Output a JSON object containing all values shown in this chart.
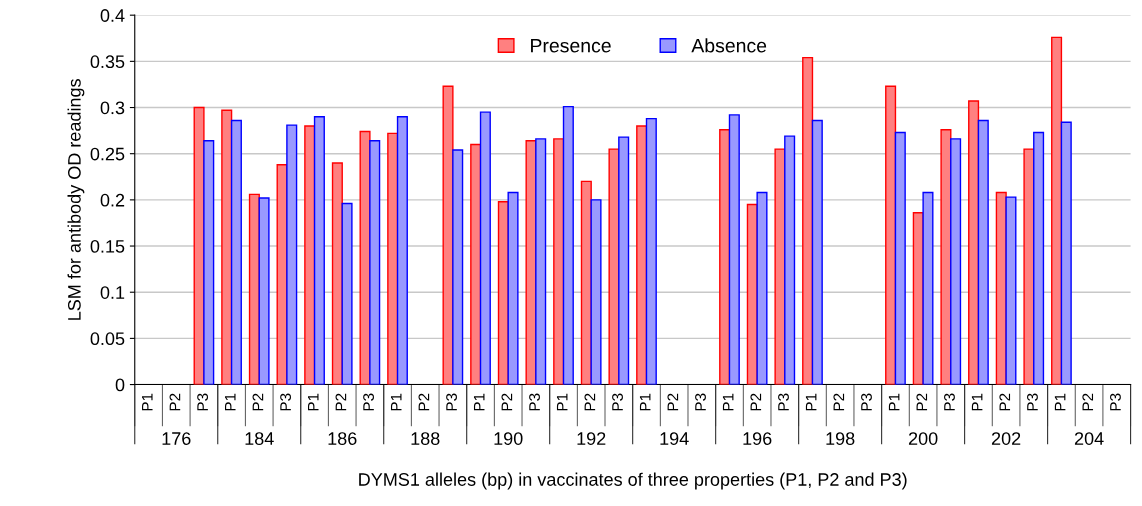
{
  "chart_data": {
    "type": "bar",
    "xlabel": "DYMS1 alleles (bp) in vaccinates of three properties (P1, P2 and P3)",
    "ylabel": "LSM for antibody OD readings",
    "categories": [
      "P1",
      "P2",
      "P3",
      "P1",
      "P2",
      "P3",
      "P1",
      "P2",
      "P3",
      "P1",
      "P2",
      "P3",
      "P1",
      "P2",
      "P3",
      "P1",
      "P2",
      "P3",
      "P1",
      "P2",
      "P3",
      "P1",
      "P2",
      "P3",
      "P1",
      "P2",
      "P3",
      "P1",
      "P2",
      "P3",
      "P1",
      "P2",
      "P3",
      "P1",
      "P2",
      "P3"
    ],
    "annotations": [
      "176",
      "184",
      "186",
      "188",
      "190",
      "192",
      "194",
      "196",
      "198",
      "200",
      "202",
      "204"
    ],
    "series": [
      {
        "name": "Presence",
        "color": "#ff8080",
        "values": [
          null,
          null,
          0.3,
          0.297,
          0.206,
          0.238,
          0.28,
          0.24,
          0.274,
          0.272,
          null,
          0.323,
          0.26,
          0.198,
          0.264,
          0.266,
          0.22,
          0.255,
          0.28,
          null,
          null,
          0.276,
          0.195,
          0.255,
          0.354,
          null,
          null,
          0.323,
          0.186,
          0.276,
          0.307,
          0.208,
          0.255,
          0.376,
          null,
          null
        ]
      },
      {
        "name": "Absence",
        "color": "#9999ff",
        "values": [
          null,
          null,
          0.264,
          0.286,
          0.202,
          0.281,
          0.29,
          0.196,
          0.264,
          0.29,
          null,
          0.254,
          0.295,
          0.208,
          0.266,
          0.301,
          0.2,
          0.268,
          0.288,
          null,
          null,
          0.292,
          0.208,
          0.269,
          0.286,
          null,
          null,
          0.273,
          0.208,
          0.266,
          0.286,
          0.203,
          0.273,
          0.284,
          null,
          null
        ]
      }
    ],
    "ylim": [
      0,
      0.4
    ],
    "yticks": [
      0,
      0.05,
      0.1,
      0.15,
      0.2,
      0.25,
      0.3,
      0.35,
      0.4
    ],
    "grid": "y",
    "legend": "top"
  }
}
